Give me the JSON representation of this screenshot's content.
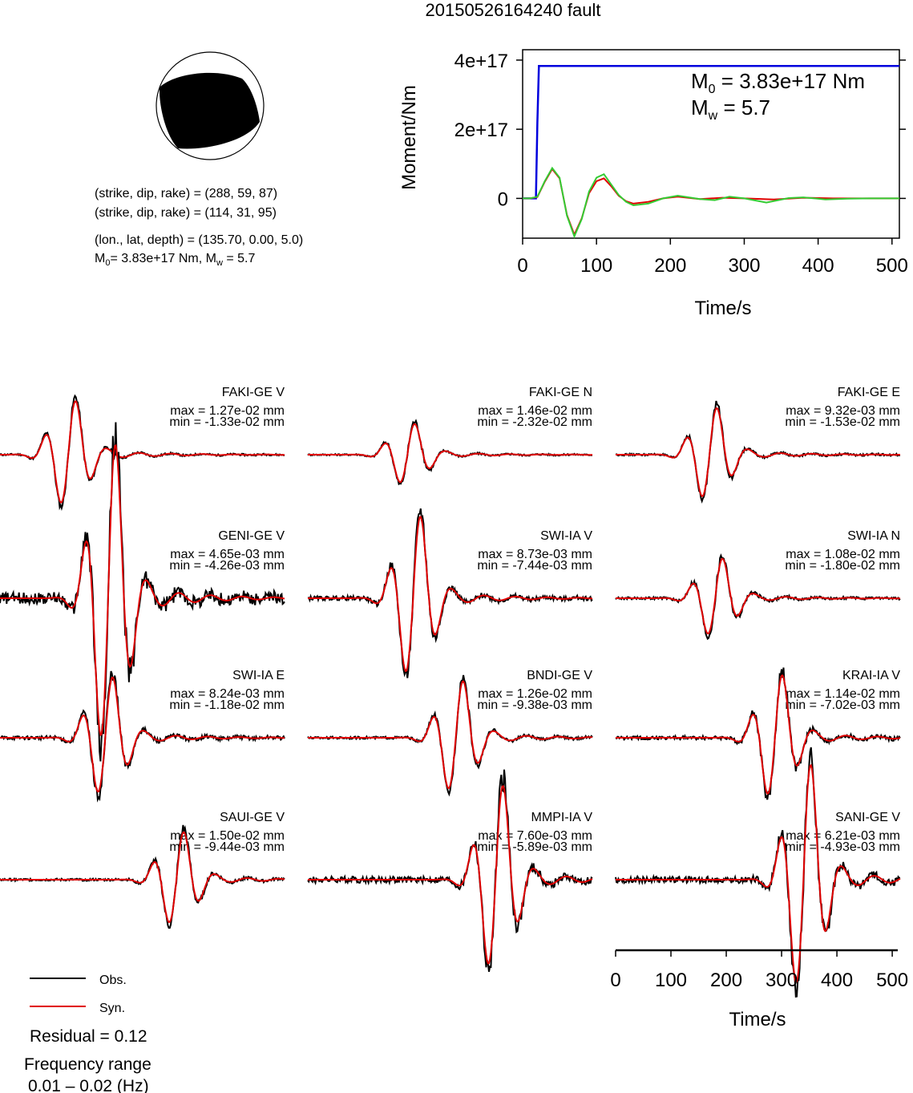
{
  "title": "20150526164240 fault",
  "mechanism": {
    "nodal1": "(strike, dip, rake) = (288, 59, 87)",
    "nodal2": "(strike, dip, rake) = (114, 31, 95)",
    "location": "(lon., lat, depth) = (135.70, 0.00, 5.0)",
    "m0_text": "= 3.83e+17 Nm, M",
    "mw_text": " = 5.7"
  },
  "moment_panel": {
    "m0_value": " = 3.83e+17 Nm",
    "mw_value": " = 5.7"
  },
  "legend": {
    "obs": "Obs.",
    "syn": "Syn.",
    "residual": "Residual = 0.12",
    "freq_label": "Frequency range",
    "freq_value": "0.01 – 0.02 (Hz)"
  },
  "colors": {
    "obs": "#000000",
    "syn": "#e00000",
    "moment": "#0000dd",
    "stf_green": "#33cc33"
  },
  "chart_data": [
    {
      "type": "line",
      "ylabel": "Moment/Nm",
      "xlabel": "Time/s",
      "xlim": [
        0,
        510
      ],
      "ylim": [
        -1.15e+17,
        4.3e+17
      ],
      "x_ticks": [
        {
          "value": 0,
          "label": "0"
        },
        {
          "value": 100,
          "label": "100"
        },
        {
          "value": 200,
          "label": "200"
        },
        {
          "value": 300,
          "label": "300"
        },
        {
          "value": 400,
          "label": "400"
        },
        {
          "value": 500,
          "label": "500"
        }
      ],
      "y_ticks": [
        {
          "value": 0,
          "label": "0"
        },
        {
          "value": 2e+17,
          "label": "2e+17"
        },
        {
          "value": 4e+17,
          "label": "4e+17"
        }
      ],
      "series": [
        {
          "x": [
            0,
            18,
            20,
            22,
            510
          ],
          "y": [
            0,
            0,
            2.2e+17,
            3.83e+17,
            3.83e+17
          ]
        },
        {
          "x": [
            0,
            10,
            20,
            30,
            40,
            50,
            60,
            70,
            80,
            90,
            100,
            110,
            120,
            130,
            140,
            150,
            170,
            190,
            210,
            240,
            260,
            280,
            300,
            330,
            360,
            380,
            410,
            440,
            470,
            510
          ],
          "y": [
            0,
            0,
            5000000000000000.0,
            5e+16,
            8.8e+16,
            6e+16,
            -5e+16,
            -1.1e+17,
            -6e+16,
            2e+16,
            6e+16,
            7e+16,
            4e+16,
            1e+16,
            -1e+16,
            -2e+16,
            -1.5e+16,
            0,
            8000000000000000.0,
            -2000000000000000.0,
            -5000000000000000.0,
            5000000000000000.0,
            0,
            -1.2e+16,
            1000000000000000.0,
            3000000000000000.0,
            -3000000000000000.0,
            -1000000000000000.0,
            0,
            0
          ]
        },
        {
          "x": [
            0,
            10,
            20,
            30,
            40,
            50,
            60,
            70,
            80,
            90,
            100,
            110,
            120,
            130,
            140,
            150,
            170,
            190,
            210,
            240,
            270,
            300,
            340,
            380,
            420,
            460,
            510
          ],
          "y": [
            0,
            0,
            4000000000000000.0,
            4.8e+16,
            8.5e+16,
            5.8e+16,
            -4.8e+16,
            -1.05e+17,
            -5.8e+16,
            1.5e+16,
            5e+16,
            5.8e+16,
            3.5e+16,
            8000000000000000.0,
            -8000000000000000.0,
            -1.5e+16,
            -1e+16,
            0,
            5000000000000000.0,
            -2000000000000000.0,
            2000000000000000.0,
            0,
            -3000000000000000.0,
            2000000000000000.0,
            0,
            0,
            0
          ]
        }
      ]
    },
    {
      "type": "line",
      "xlabel": "Time/s",
      "xlim": [
        0,
        510
      ],
      "x_ticks": [
        {
          "value": 0,
          "label": "0"
        },
        {
          "value": 100,
          "label": "100"
        },
        {
          "value": 200,
          "label": "200"
        },
        {
          "value": 300,
          "label": "300"
        },
        {
          "value": 400,
          "label": "400"
        },
        {
          "value": 500,
          "label": "500"
        }
      ],
      "panels": [
        {
          "station": "FAKI-GE V",
          "max": "max = 1.27e-02 mm",
          "min": "min = -1.33e-02 mm",
          "vmax": 0.0127,
          "vmin": -0.0133,
          "center": 0.24,
          "obs_amp": 0.08
        },
        {
          "station": "FAKI-GE N",
          "max": "max = 1.46e-02 mm",
          "min": "min = -2.32e-02 mm",
          "vmax": 0.0146,
          "vmin": -0.0232,
          "center": 0.35,
          "obs_amp": 0.12
        },
        {
          "station": "FAKI-GE E",
          "max": "max = 9.32e-03 mm",
          "min": "min = -1.53e-02 mm",
          "vmax": 0.00932,
          "vmin": -0.0153,
          "center": 0.33,
          "obs_amp": 0.1
        },
        {
          "station": "GENI-GE V",
          "max": "max = 4.65e-03 mm",
          "min": "min = -4.26e-03 mm",
          "vmax": 0.00465,
          "vmin": -0.00426,
          "center": 0.38,
          "obs_amp": 0.18
        },
        {
          "station": "SWI-IA V",
          "max": "max = 8.73e-03 mm",
          "min": "min = -7.44e-03 mm",
          "vmax": 0.00873,
          "vmin": -0.00744,
          "center": 0.37,
          "obs_amp": 0.12
        },
        {
          "station": "SWI-IA N",
          "max": "max = 1.08e-02 mm",
          "min": "min = -1.80e-02 mm",
          "vmax": 0.0108,
          "vmin": -0.018,
          "center": 0.35,
          "obs_amp": 0.14
        },
        {
          "station": "SWI-IA E",
          "max": "max = 8.24e-03 mm",
          "min": "min = -1.18e-02 mm",
          "vmax": 0.00824,
          "vmin": -0.0118,
          "center": 0.37,
          "obs_amp": 0.14
        },
        {
          "station": "BNDI-GE V",
          "max": "max = 1.26e-02 mm",
          "min": "min = -9.38e-03 mm",
          "vmax": 0.0126,
          "vmin": -0.00938,
          "center": 0.52,
          "obs_amp": 0.1
        },
        {
          "station": "KRAI-IA V",
          "max": "max = 1.14e-02 mm",
          "min": "min = -7.02e-03 mm",
          "vmax": 0.0114,
          "vmin": -0.00702,
          "center": 0.56,
          "obs_amp": 0.14
        },
        {
          "station": "SAUI-GE V",
          "max": "max = 1.50e-02 mm",
          "min": "min = -9.44e-03 mm",
          "vmax": 0.015,
          "vmin": -0.00944,
          "center": 0.62,
          "obs_amp": 0.12
        },
        {
          "station": "MMPI-IA V",
          "max": "max = 7.60e-03 mm",
          "min": "min = -5.89e-03 mm",
          "vmax": 0.0076,
          "vmin": -0.00589,
          "center": 0.66,
          "obs_amp": 0.16
        },
        {
          "station": "SANI-GE V",
          "max": "max = 6.21e-03 mm",
          "min": "min = -4.93e-03 mm",
          "vmax": 0.00621,
          "vmin": -0.00493,
          "center": 0.66,
          "obs_amp": 0.14
        }
      ]
    }
  ]
}
